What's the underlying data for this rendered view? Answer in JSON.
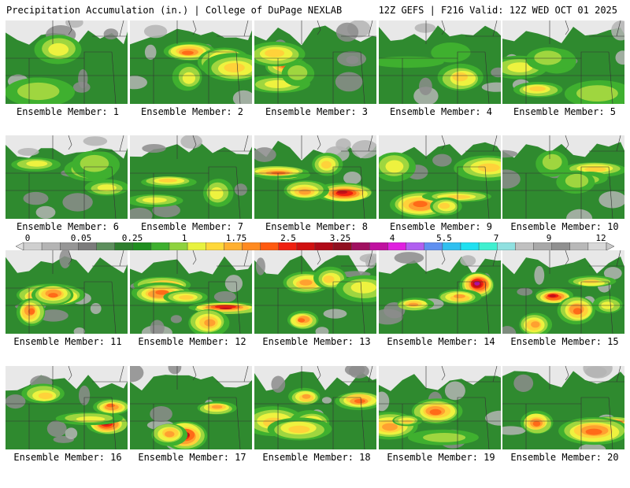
{
  "header": {
    "title": "Precipitation Accumulation (in.) | College of DuPage NEXLAB",
    "run_info": "12Z GEFS | F216 Valid: 12Z WED OCT 01 2025"
  },
  "member_label_prefix": "Ensemble Member: ",
  "members": [
    {
      "label": "Ensemble Member: 1",
      "peak": 2.5
    },
    {
      "label": "Ensemble Member: 2",
      "peak": 3.25
    },
    {
      "label": "Ensemble Member: 3",
      "peak": 2.5
    },
    {
      "label": "Ensemble Member: 4",
      "peak": 1.75
    },
    {
      "label": "Ensemble Member: 5",
      "peak": 1.75
    },
    {
      "label": "Ensemble Member: 6",
      "peak": 1.75
    },
    {
      "label": "Ensemble Member: 7",
      "peak": 1.75
    },
    {
      "label": "Ensemble Member: 8",
      "peak": 3.25
    },
    {
      "label": "Ensemble Member: 9",
      "peak": 2.5
    },
    {
      "label": "Ensemble Member: 10",
      "peak": 1.75
    },
    {
      "label": "Ensemble Member: 11",
      "peak": 3.25
    },
    {
      "label": "Ensemble Member: 12",
      "peak": 3.25
    },
    {
      "label": "Ensemble Member: 13",
      "peak": 2.5
    },
    {
      "label": "Ensemble Member: 14",
      "peak": 4
    },
    {
      "label": "Ensemble Member: 15",
      "peak": 3.25
    },
    {
      "label": "Ensemble Member: 16",
      "peak": 3.25
    },
    {
      "label": "Ensemble Member: 17",
      "peak": 3.25
    },
    {
      "label": "Ensemble Member: 18",
      "peak": 2.5
    },
    {
      "label": "Ensemble Member: 19",
      "peak": 2.5
    },
    {
      "label": "Ensemble Member: 20",
      "peak": 3.25
    }
  ],
  "colorbar": {
    "tick_labels": [
      "0",
      "0.05",
      "0.25",
      "1",
      "1.75",
      "2.5",
      "3.25",
      "4",
      "5.5",
      "7",
      "9",
      "12"
    ],
    "colors": [
      "#cfcfcf",
      "#b4b4b4",
      "#969696",
      "#7c7c7c",
      "#5d8f5d",
      "#2f7f2f",
      "#1f8f1f",
      "#3fb02f",
      "#8fd23f",
      "#e8f23f",
      "#ffd83a",
      "#ffb030",
      "#ff8a20",
      "#ff5a10",
      "#f02010",
      "#d01010",
      "#b00a18",
      "#901020",
      "#a01060",
      "#c010a0",
      "#e020e0",
      "#b060f0",
      "#6090f0",
      "#30c0f0",
      "#20e0f0",
      "#40f0d0",
      "#90e0e0",
      "#c0c0c0",
      "#a8a8a8",
      "#909090",
      "#b8b8b8",
      "#d8d8d8"
    ]
  }
}
